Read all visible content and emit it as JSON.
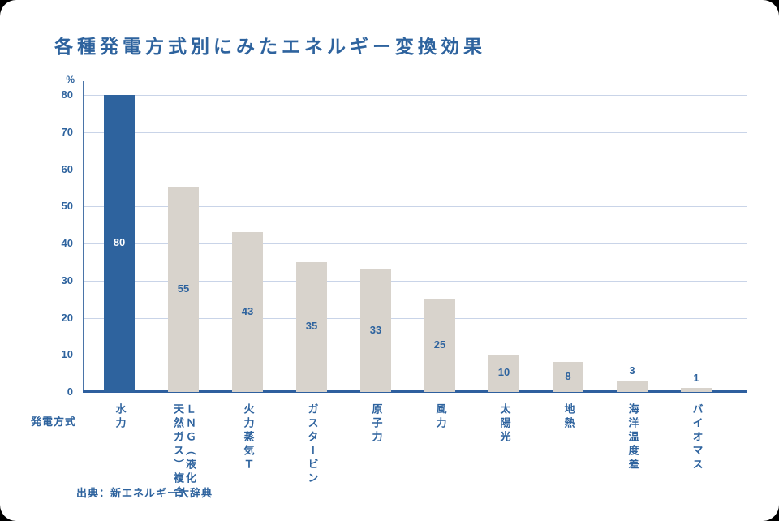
{
  "page": {
    "title": "各種発電方式別にみたエネルギー変換効果",
    "source": "出典：新エネルギー大辞典"
  },
  "chart_data": {
    "type": "bar",
    "title": "各種発電方式別にみたエネルギー変換効果",
    "unit_label": "%",
    "xlabel": "発電方式",
    "source": "出典：新エネルギー大辞典",
    "categories": [
      "水力",
      "ＬＮＧ（液化\n天然ガス）複合",
      "火力蒸気Ｔ",
      "ガスタービン",
      "原子力",
      "風力",
      "太陽光",
      "地熱",
      "海洋温度差",
      "バイオマス"
    ],
    "values": [
      80,
      55,
      43,
      35,
      33,
      25,
      10,
      8,
      3,
      1
    ],
    "highlight_index": 0,
    "ylim": [
      0,
      80
    ],
    "yticks": [
      0,
      10,
      20,
      30,
      40,
      50,
      60,
      70,
      80
    ],
    "grid": true,
    "legend": "none",
    "colors": {
      "highlight_bar": "#2e639e",
      "bar": "#d8d3cc",
      "text_blue": "#2e639e",
      "value_on_highlight": "#ffffff",
      "grid": "#c9d4e8",
      "axis": "#2e5f9e"
    }
  }
}
